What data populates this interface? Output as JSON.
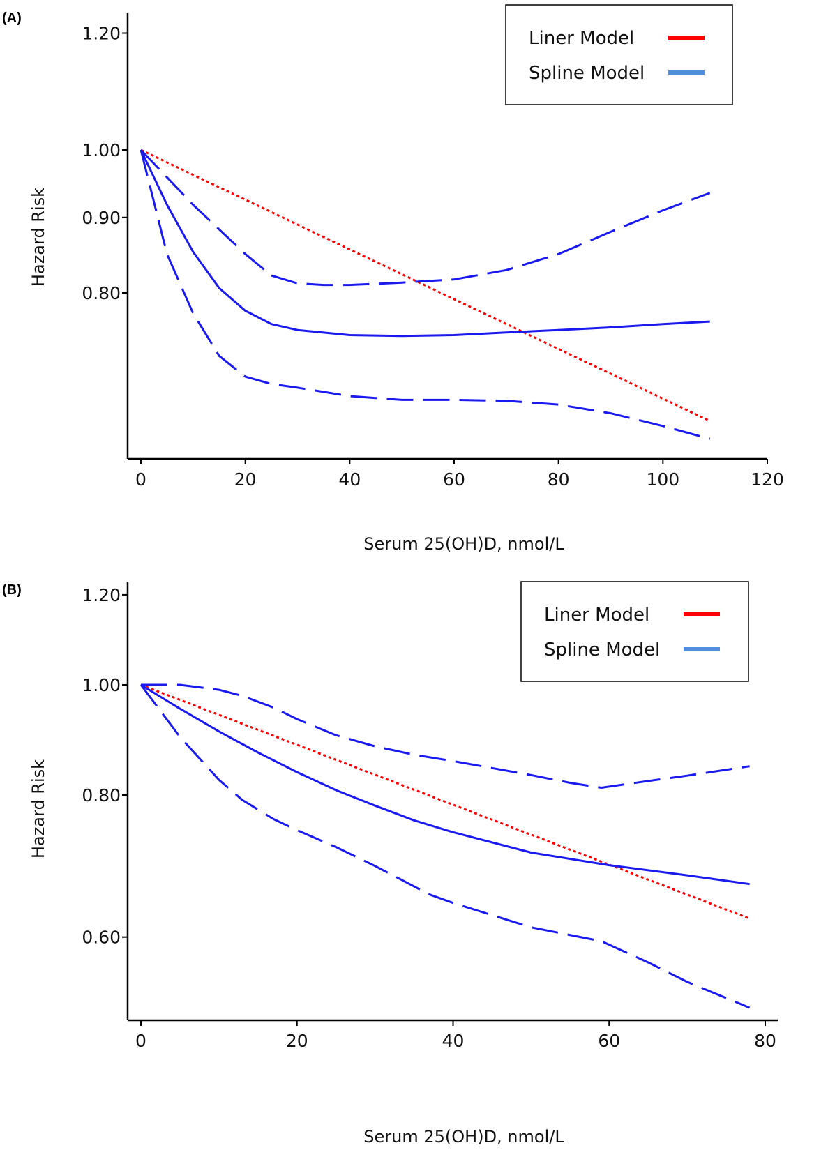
{
  "chart_data": [
    {
      "type": "line",
      "panel_label": "(A)",
      "xlabel": "Serum 25(OH)D, nmol/L",
      "ylabel": "Hazard Risk",
      "xlim": [
        0,
        120
      ],
      "ylim": [
        0.6,
        1.2
      ],
      "y_scale": "log",
      "xticks": [
        0,
        20,
        40,
        60,
        80,
        100,
        120
      ],
      "yticks": [
        {
          "value": 0.8,
          "label": "0.80"
        },
        {
          "value": 0.9,
          "label": "0.90"
        },
        {
          "value": 1.0,
          "label": "1.00"
        },
        {
          "value": 1.2,
          "label": "1.20"
        }
      ],
      "legend": {
        "position": "top-right",
        "entries": [
          {
            "label": "Liner Model",
            "color": "#ff0000"
          },
          {
            "label": "Spline Model",
            "color": "#4f8fdc"
          }
        ]
      },
      "series": [
        {
          "role": "linear",
          "legend": "Liner Model",
          "color": "#ff0000",
          "style": "dotted",
          "x": [
            0,
            109
          ],
          "y": [
            1.0,
            0.655
          ]
        },
        {
          "role": "spline",
          "legend": "Spline Model",
          "color": "#1a1af0",
          "style": "solid",
          "x": [
            0,
            5,
            10,
            15,
            20,
            25,
            30,
            40,
            50,
            60,
            70,
            80,
            90,
            100,
            109
          ],
          "y": [
            1.0,
            0.918,
            0.853,
            0.806,
            0.778,
            0.762,
            0.755,
            0.749,
            0.748,
            0.749,
            0.752,
            0.755,
            0.758,
            0.762,
            0.765
          ]
        },
        {
          "role": "upper-ci",
          "legend": "Spline Model",
          "color": "#1a1af0",
          "style": "dashed",
          "x": [
            0,
            10,
            20,
            25,
            30,
            35,
            40,
            50,
            60,
            70,
            80,
            90,
            100,
            109
          ],
          "y": [
            1.0,
            0.918,
            0.85,
            0.822,
            0.812,
            0.81,
            0.81,
            0.813,
            0.817,
            0.829,
            0.85,
            0.88,
            0.91,
            0.935
          ]
        },
        {
          "role": "lower-ci",
          "legend": "Spline Model",
          "color": "#1a1af0",
          "style": "dashed",
          "x": [
            0,
            5,
            10,
            15,
            20,
            25,
            30,
            40,
            50,
            60,
            70,
            80,
            90,
            100,
            109
          ],
          "y": [
            1.0,
            0.85,
            0.775,
            0.725,
            0.702,
            0.694,
            0.69,
            0.681,
            0.677,
            0.677,
            0.676,
            0.672,
            0.663,
            0.65,
            0.637
          ]
        }
      ]
    },
    {
      "type": "line",
      "panel_label": "(B)",
      "xlabel": "Serum 25(OH)D, nmol/L",
      "ylabel": "Hazard Risk",
      "xlim": [
        0,
        80
      ],
      "ylim": [
        0.5,
        1.2
      ],
      "y_scale": "log",
      "xticks": [
        0,
        20,
        40,
        60,
        80
      ],
      "yticks": [
        {
          "value": 0.6,
          "label": "0.60"
        },
        {
          "value": 0.8,
          "label": "0.80"
        },
        {
          "value": 1.0,
          "label": "1.00"
        },
        {
          "value": 1.2,
          "label": "1.20"
        }
      ],
      "legend": {
        "position": "top-right",
        "entries": [
          {
            "label": "Liner Model",
            "color": "#ff0000"
          },
          {
            "label": "Spline Model",
            "color": "#4f8fdc"
          }
        ]
      },
      "series": [
        {
          "role": "linear",
          "legend": "Liner Model",
          "color": "#ff0000",
          "style": "dotted",
          "x": [
            0,
            78
          ],
          "y": [
            1.0,
            0.623
          ]
        },
        {
          "role": "spline",
          "legend": "Spline Model",
          "color": "#1a1af0",
          "style": "solid",
          "x": [
            0,
            5,
            10,
            15,
            20,
            25,
            30,
            35,
            40,
            50,
            60,
            70,
            78
          ],
          "y": [
            1.0,
            0.953,
            0.91,
            0.872,
            0.838,
            0.808,
            0.783,
            0.76,
            0.742,
            0.712,
            0.694,
            0.68,
            0.668
          ]
        },
        {
          "role": "upper-ci",
          "legend": "Spline Model",
          "color": "#1a1af0",
          "style": "dashed",
          "x": [
            0,
            5,
            10,
            13,
            17,
            20,
            25,
            30,
            35,
            40,
            45,
            50,
            55,
            59,
            65,
            70,
            78
          ],
          "y": [
            1.0,
            1.0,
            0.99,
            0.978,
            0.955,
            0.933,
            0.903,
            0.883,
            0.868,
            0.857,
            0.845,
            0.833,
            0.82,
            0.812,
            0.823,
            0.832,
            0.848
          ]
        },
        {
          "role": "lower-ci",
          "legend": "Spline Model",
          "color": "#1a1af0",
          "style": "dashed",
          "x": [
            0,
            5,
            10,
            13,
            17,
            20,
            25,
            30,
            37,
            40,
            50,
            59,
            65,
            70,
            78
          ],
          "y": [
            1.0,
            0.9,
            0.825,
            0.792,
            0.762,
            0.745,
            0.72,
            0.693,
            0.654,
            0.643,
            0.612,
            0.595,
            0.57,
            0.548,
            0.52
          ]
        }
      ]
    }
  ]
}
